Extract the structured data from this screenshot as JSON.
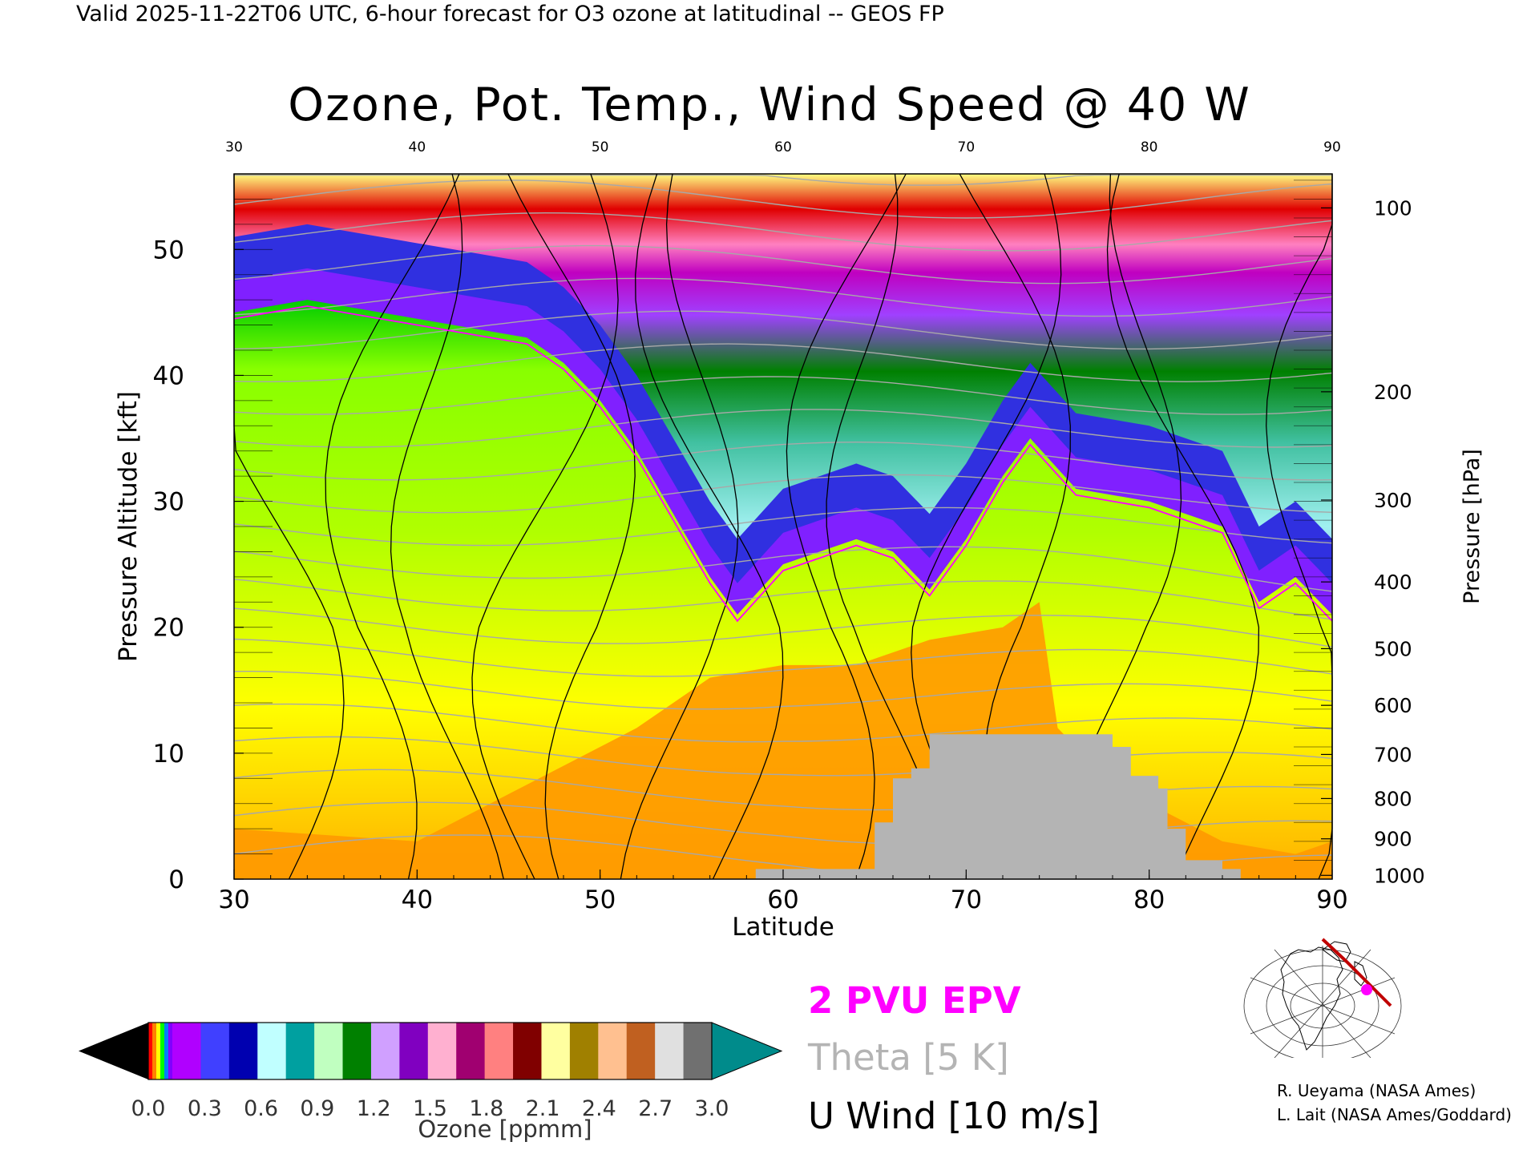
{
  "header": "Valid 2025-11-22T06 UTC, 6-hour forecast for O3 ozone at latitudinal -- GEOS FP",
  "title": "Ozone, Pot. Temp., Wind Speed @ 40 W",
  "chart_data": {
    "type": "heatmap",
    "xlabel": "Latitude",
    "ylabel": "Pressure Altitude [kft]",
    "y2label": "Pressure [hPa]",
    "xlim": [
      30,
      90
    ],
    "ylim": [
      0,
      56
    ],
    "x_ticks": [
      30,
      40,
      50,
      60,
      70,
      80,
      90
    ],
    "y_ticks": [
      0,
      10,
      20,
      30,
      40,
      50
    ],
    "pressure_ticks": [
      {
        "label": "100",
        "kft": 53.3
      },
      {
        "label": "200",
        "kft": 38.7
      },
      {
        "label": "300",
        "kft": 30.1
      },
      {
        "label": "400",
        "kft": 23.6
      },
      {
        "label": "500",
        "kft": 18.3
      },
      {
        "label": "600",
        "kft": 13.8
      },
      {
        "label": "700",
        "kft": 9.9
      },
      {
        "label": "800",
        "kft": 6.4
      },
      {
        "label": "900",
        "kft": 3.2
      },
      {
        "label": "1000",
        "kft": 0.3
      }
    ],
    "tropopause_kft": [
      [
        30,
        45
      ],
      [
        34,
        46
      ],
      [
        38,
        45
      ],
      [
        42,
        44
      ],
      [
        46,
        43
      ],
      [
        48,
        41
      ],
      [
        50,
        38
      ],
      [
        52,
        34
      ],
      [
        54,
        29
      ],
      [
        56,
        24
      ],
      [
        57.5,
        21
      ],
      [
        60,
        25
      ],
      [
        62,
        26
      ],
      [
        64,
        27
      ],
      [
        66,
        26
      ],
      [
        68,
        23
      ],
      [
        70,
        27
      ],
      [
        72,
        32
      ],
      [
        73.5,
        35
      ],
      [
        76,
        31
      ],
      [
        80,
        30
      ],
      [
        84,
        28
      ],
      [
        86,
        22
      ],
      [
        88,
        24
      ],
      [
        90,
        21
      ]
    ],
    "terrain_kft": [
      [
        58.5,
        0
      ],
      [
        58.5,
        0.8
      ],
      [
        62.5,
        0.8
      ],
      [
        65,
        0.8
      ],
      [
        65,
        4.5
      ],
      [
        66,
        4.5
      ],
      [
        66,
        8
      ],
      [
        67,
        8
      ],
      [
        67,
        8.8
      ],
      [
        68,
        8.8
      ],
      [
        68,
        11.5
      ],
      [
        78,
        11.5
      ],
      [
        78,
        10.5
      ],
      [
        79,
        10.5
      ],
      [
        79,
        8.2
      ],
      [
        80.5,
        8.2
      ],
      [
        80.5,
        7.2
      ],
      [
        81,
        7.2
      ],
      [
        81,
        4
      ],
      [
        82,
        4
      ],
      [
        82,
        1.5
      ],
      [
        84,
        1.5
      ],
      [
        84,
        0.8
      ],
      [
        85,
        0.8
      ],
      [
        85,
        0
      ]
    ],
    "colorbar": {
      "label": "Ozone [ppmm]",
      "ticks": [
        "0.0",
        "0.3",
        "0.6",
        "0.9",
        "1.2",
        "1.5",
        "1.8",
        "2.1",
        "2.4",
        "2.7",
        "3.0"
      ],
      "range": [
        0,
        3.0
      ]
    },
    "legend": [
      {
        "label": "2 PVU EPV",
        "color": "#ff00ff"
      },
      {
        "label": "Theta [5 K]",
        "color": "#b4b4b4"
      },
      {
        "label": "U Wind [10 m/s]",
        "color": "#000000"
      }
    ]
  },
  "credits": [
    "R. Ueyama (NASA Ames)",
    "L. Lait (NASA Ames/Goddard)"
  ]
}
